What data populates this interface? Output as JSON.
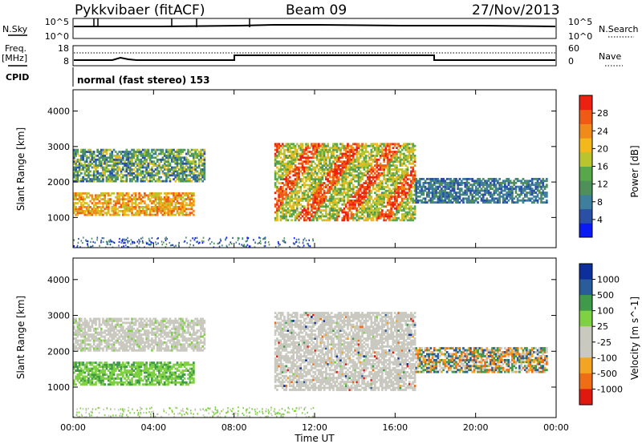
{
  "header": {
    "station": "Pykkvibaer (fitACF)",
    "beam": "Beam 09",
    "date": "27/Nov/2013"
  },
  "strips": {
    "nsky": {
      "label": "N.Sky",
      "right_label": "N.Search",
      "ticks": [
        "10^5",
        "10^0"
      ],
      "right_ticks": [
        "10^5",
        "10^0"
      ]
    },
    "freq": {
      "label_top": "Freq.",
      "label_bottom": "[MHz]",
      "ticks": [
        "18",
        "8"
      ],
      "right_label": "Nave",
      "right_ticks": [
        "60",
        "0"
      ]
    },
    "cpid": {
      "label": "CPID",
      "value": "normal (fast stereo) 153"
    }
  },
  "panels": {
    "power": {
      "ylabel": "Slant Range [km]",
      "cbar_label": "Power [dB]"
    },
    "velocity": {
      "ylabel": "Slant Range [km]",
      "cbar_label": "Velocity [m s^-1]"
    }
  },
  "axis": {
    "xlabel": "Time UT",
    "x_ticks": [
      "00:00",
      "04:00",
      "08:00",
      "12:00",
      "16:00",
      "20:00",
      "00:00"
    ],
    "y_ticks": [
      "1000",
      "2000",
      "3000",
      "4000"
    ]
  },
  "colors": {
    "power_scale": [
      "#0a1af5",
      "#2a4fa6",
      "#3f7f9e",
      "#4e8f5a",
      "#58a84b",
      "#b9c42f",
      "#f2b81c",
      "#f08a1a",
      "#ef5a14",
      "#ec2112"
    ],
    "velocity_scale": [
      "#e0190f",
      "#ee6d15",
      "#f5a421",
      "#c9c9c0",
      "#c9c9c0",
      "#7fd043",
      "#3f9a4a",
      "#2a5b9b",
      "#0d2f9c"
    ]
  },
  "chart_data": [
    {
      "type": "heatmap",
      "title": "Power",
      "x_range": [
        "00:00",
        "24:00"
      ],
      "y_range_km": [
        150,
        4600
      ],
      "colorbar": {
        "label": "Power [dB]",
        "ticks": [
          "4",
          "8",
          "12",
          "16",
          "20",
          "24",
          "28"
        ],
        "range": [
          0,
          32
        ]
      },
      "regions": [
        {
          "t_start": "00:00",
          "t_end": "06:00",
          "range_km": [
            1050,
            1700
          ],
          "power_db_approx": [
            16,
            28
          ]
        },
        {
          "t_start": "00:00",
          "t_end": "06:30",
          "range_km": [
            2000,
            2900
          ],
          "power_db_approx": [
            4,
            20
          ]
        },
        {
          "t_start": "10:00",
          "t_end": "17:00",
          "range_km": [
            900,
            3100
          ],
          "power_db_approx": [
            12,
            30
          ]
        },
        {
          "t_start": "17:00",
          "t_end": "23:30",
          "range_km": [
            1400,
            2100
          ],
          "power_db_approx": [
            4,
            12
          ]
        }
      ]
    },
    {
      "type": "heatmap",
      "title": "Velocity",
      "x_range": [
        "00:00",
        "24:00"
      ],
      "y_range_km": [
        150,
        4600
      ],
      "colorbar": {
        "label": "Velocity [m s^-1]",
        "ticks": [
          "1000",
          "500",
          "100",
          "25",
          "-25",
          "-100",
          "-500",
          "-1000"
        ],
        "range": [
          -1000,
          1000
        ]
      },
      "regions": [
        {
          "t_start": "00:00",
          "t_end": "06:00",
          "range_km": [
            1050,
            1700
          ],
          "velocity_approx": [
            25,
            100
          ]
        },
        {
          "t_start": "00:00",
          "t_end": "06:30",
          "range_km": [
            2000,
            2900
          ],
          "velocity_approx": [
            -25,
            25
          ]
        },
        {
          "t_start": "10:00",
          "t_end": "17:00",
          "range_km": [
            900,
            3100
          ],
          "velocity_approx": [
            -25,
            25
          ]
        },
        {
          "t_start": "17:00",
          "t_end": "23:30",
          "range_km": [
            1400,
            2100
          ],
          "velocity_approx": [
            -500,
            500
          ]
        }
      ]
    }
  ]
}
